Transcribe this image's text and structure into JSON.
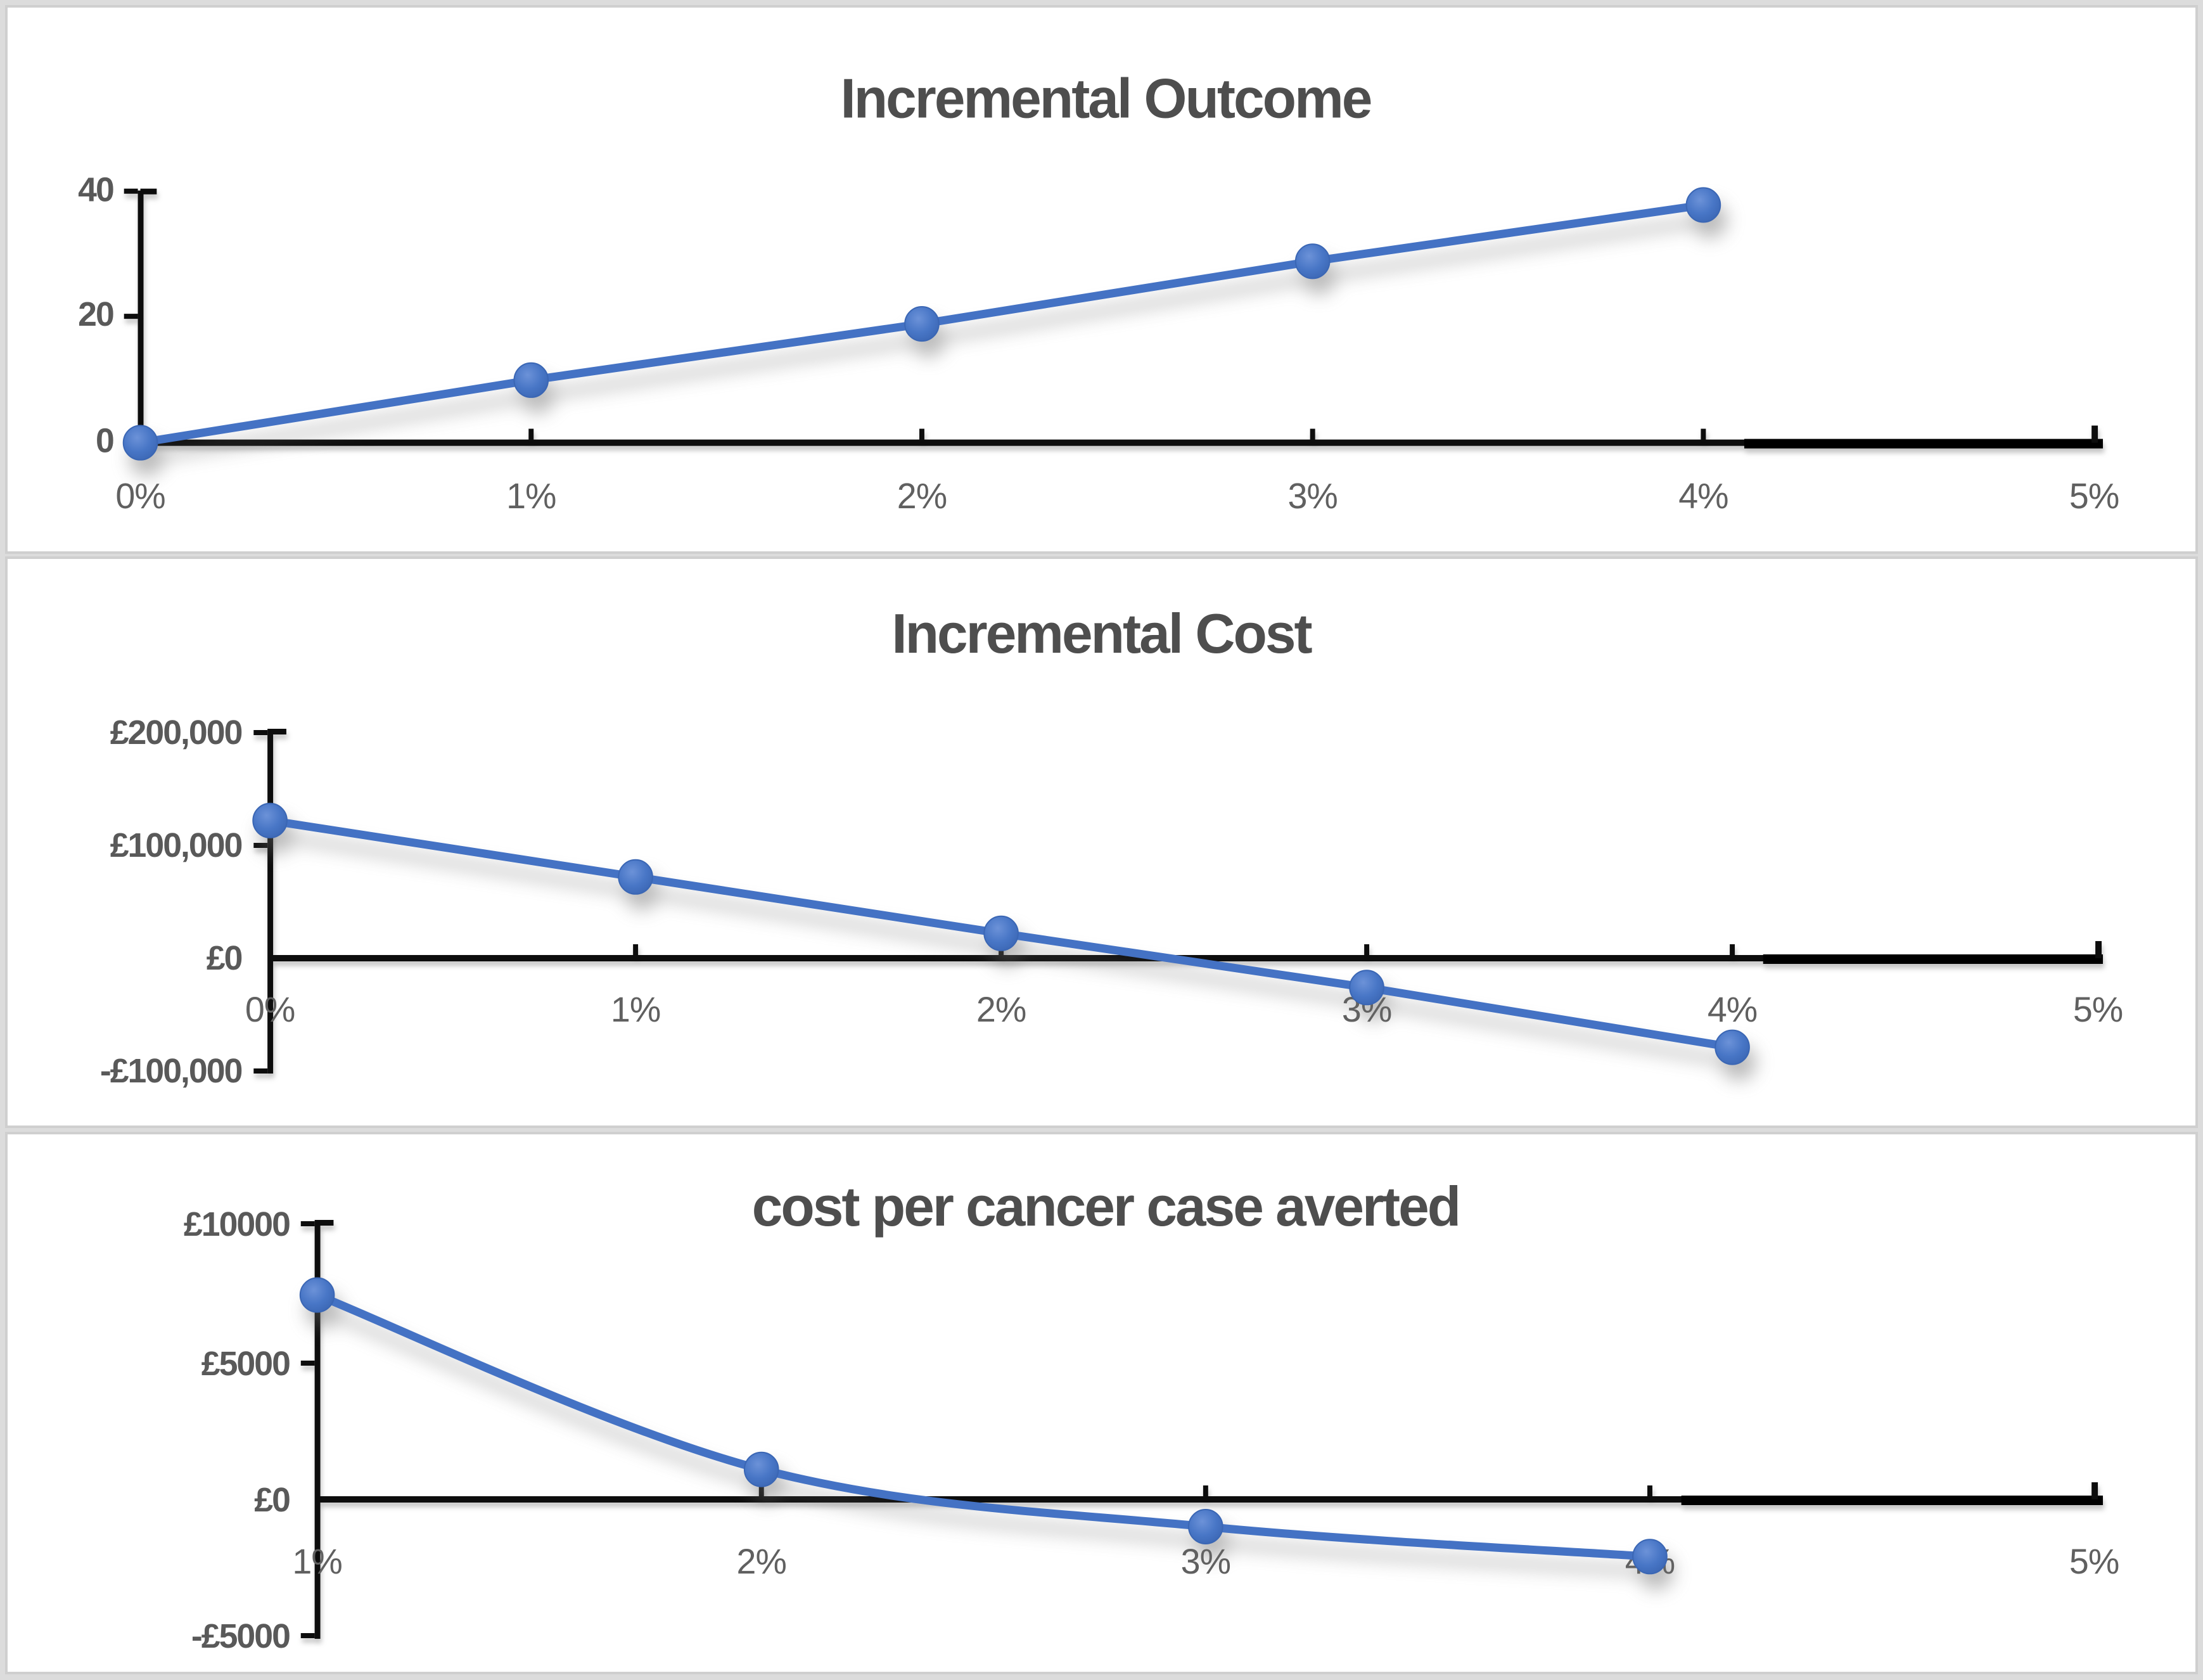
{
  "figure": {
    "accent_blue": "#4472C4",
    "label_gray": "#595959",
    "title_gray": "#4e4e4e",
    "panel_border_gray": "#cfcfcf"
  },
  "chart_data": [
    {
      "type": "line",
      "title": "Incremental Outcome",
      "categories": [
        "0%",
        "1%",
        "2%",
        "3%",
        "4%"
      ],
      "values": [
        0,
        10,
        19,
        29,
        38
      ],
      "x_tick_labels": [
        "0%",
        "1%",
        "2%",
        "3%",
        "4%",
        "5%"
      ],
      "y_tick_labels": [
        "40",
        "20",
        "0"
      ],
      "xlabel": "",
      "ylabel": "",
      "ylim": [
        0,
        40
      ],
      "xlim": [
        "0%",
        "5%"
      ],
      "grid": "off",
      "legend": "none",
      "smooth": false,
      "line_color": "#4472C4",
      "marker": "circle"
    },
    {
      "type": "line",
      "title": "Incremental Cost",
      "categories": [
        "0%",
        "1%",
        "2%",
        "3%",
        "4%"
      ],
      "values": [
        122000,
        72000,
        22000,
        -26000,
        -79000
      ],
      "x_tick_labels": [
        "0%",
        "1%",
        "2%",
        "3%",
        "4%",
        "5%"
      ],
      "y_tick_labels": [
        "£200,000",
        "£100,000",
        "£0",
        "-£100,000"
      ],
      "xlabel": "",
      "ylabel": "",
      "ylim": [
        -100000,
        200000
      ],
      "xlim": [
        "0%",
        "5%"
      ],
      "grid": "off",
      "legend": "none",
      "smooth": false,
      "line_color": "#4472C4",
      "marker": "circle"
    },
    {
      "type": "line",
      "title": "cost per cancer case averted",
      "categories": [
        "1%",
        "2%",
        "3%",
        "4%"
      ],
      "values": [
        7500,
        1100,
        -1000,
        -2100
      ],
      "x_tick_labels": [
        "1%",
        "2%",
        "3%",
        "4%",
        "5%"
      ],
      "y_tick_labels": [
        "£10000",
        "£5000",
        "£0",
        "-£5000"
      ],
      "xlabel": "",
      "ylabel": "",
      "ylim": [
        -5000,
        10000
      ],
      "xlim": [
        "1%",
        "5%"
      ],
      "grid": "off",
      "legend": "none",
      "smooth": true,
      "line_color": "#4472C4",
      "marker": "circle"
    }
  ]
}
